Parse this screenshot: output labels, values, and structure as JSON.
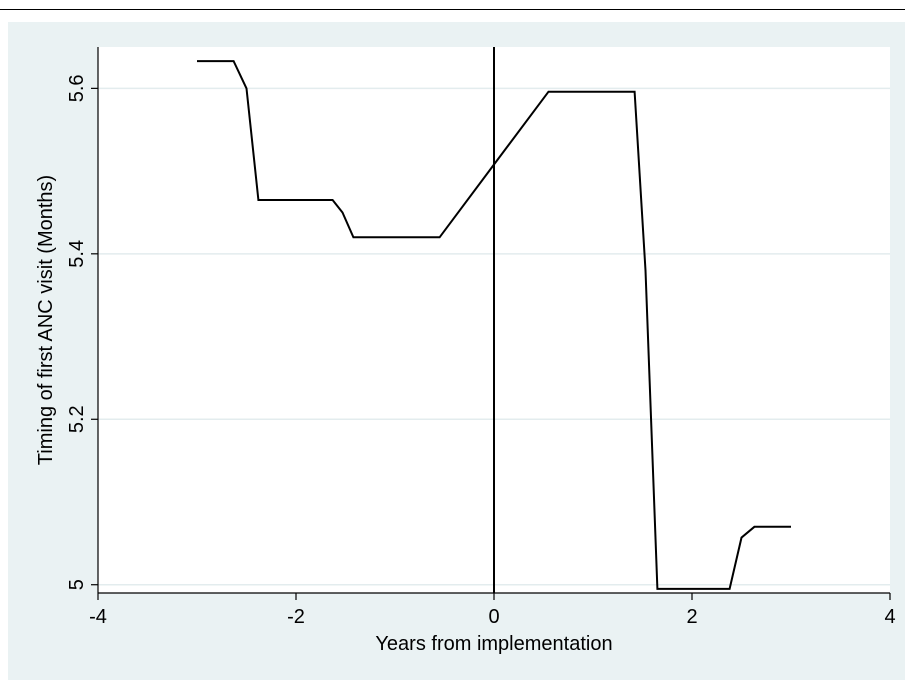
{
  "chart_data": {
    "type": "line",
    "title": "",
    "xlabel": "Years from implementation",
    "ylabel": "Timing of first ANC visit (Months)",
    "xlim": [
      -4,
      4
    ],
    "ylim": [
      4.99,
      5.65
    ],
    "xticks": [
      -4,
      -2,
      0,
      2,
      4
    ],
    "xtick_labels": [
      "-4",
      "-2",
      "0",
      "2",
      "4"
    ],
    "yticks": [
      5,
      5.2,
      5.4,
      5.6
    ],
    "ytick_labels": [
      "5",
      "5.2",
      "5.4",
      "5.6"
    ],
    "grid": "horizontal",
    "reference_line_x": 0,
    "colors": {
      "plot_bg": "#ffffff",
      "graph_bg": "#eaf2f3",
      "line": "#000000",
      "grid": "#e3ecee"
    },
    "series": [
      {
        "x": [
          -3.0,
          -2.63,
          -2.5,
          -2.38,
          -1.63,
          -1.53,
          -1.42,
          -0.55,
          0.0,
          0.55,
          1.42,
          1.53,
          1.65,
          2.38,
          2.5,
          2.63,
          3.0
        ],
        "y": [
          5.633,
          5.633,
          5.6,
          5.465,
          5.465,
          5.45,
          5.42,
          5.42,
          5.508,
          5.596,
          5.596,
          5.38,
          4.995,
          4.995,
          5.057,
          5.07,
          5.07
        ]
      }
    ]
  }
}
